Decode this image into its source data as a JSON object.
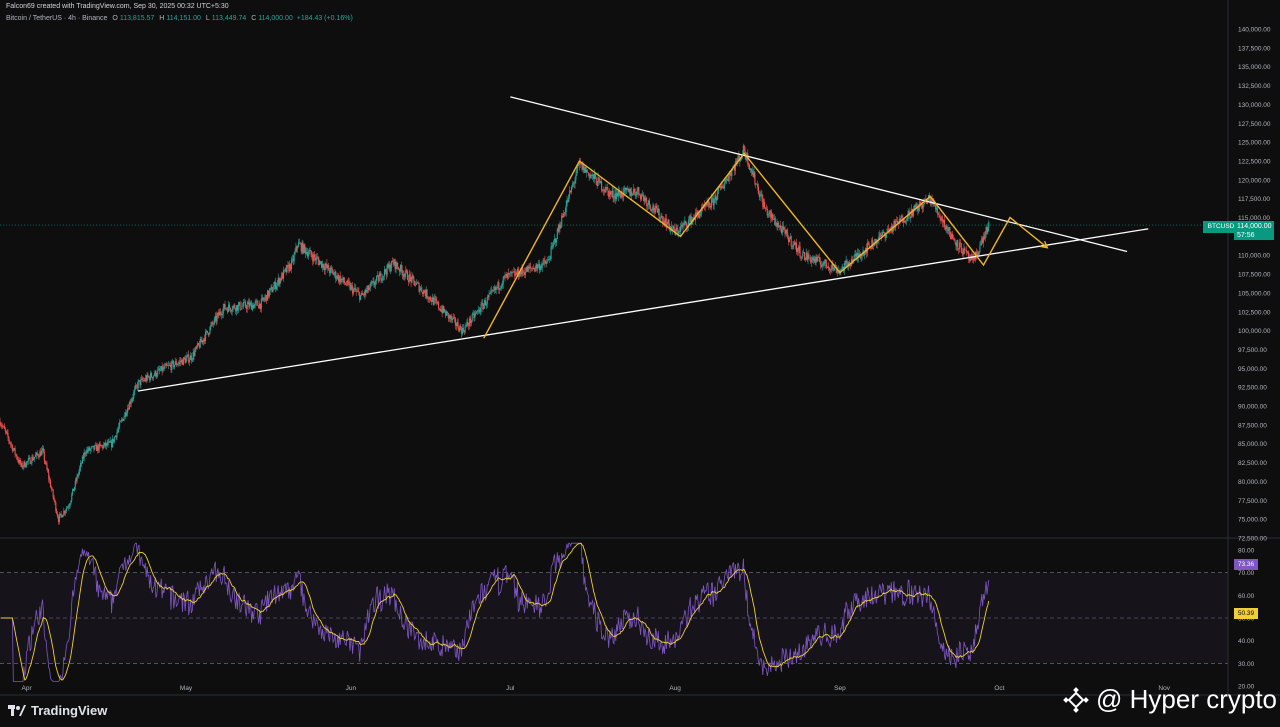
{
  "header": {
    "author_line": "Falcon69 created with TradingView.com, Sep 30, 2025 00:32 UTC+5:30",
    "symbol": "Bitcoin / TetherUS · 4h · Binance",
    "ohlc": {
      "o_label": "O",
      "o": "113,815.57",
      "h_label": "H",
      "h": "114,151.00",
      "l_label": "L",
      "l": "113,449.74",
      "c_label": "C",
      "c": "114,000.00",
      "change": "+184.43 (+0.16%)"
    }
  },
  "tags": {
    "symbol_tag": "BTCUSDT",
    "price": "114,000.00",
    "countdown": "57:56",
    "rsi_value": "73.36",
    "rsi_ma_value": "50.39"
  },
  "footer": {
    "brand": "TradingView"
  },
  "watermark": {
    "text": "@ Hyper  crypto"
  },
  "colors": {
    "background": "#0e0e0e",
    "up": "#26a69a",
    "down": "#ef5350",
    "rsi_line": "#7e57c2",
    "rsi_ma": "#f0d034",
    "pattern": "#f0b429",
    "trendline": "#ffffff"
  },
  "chart_data": [
    {
      "type": "candlestick",
      "title": "Bitcoin / TetherUS · 4h · Binance",
      "y_axis_labels": [
        "140,000.00",
        "137,500.00",
        "135,000.00",
        "132,500.00",
        "130,000.00",
        "127,500.00",
        "125,000.00",
        "122,500.00",
        "120,000.00",
        "117,500.00",
        "115,000.00",
        "112,500.00",
        "110,000.00",
        "107,500.00",
        "105,000.00",
        "102,500.00",
        "100,000.00",
        "97,500.00",
        "95,000.00",
        "92,500.00",
        "90,000.00",
        "87,500.00",
        "85,000.00",
        "82,500.00",
        "80,000.00",
        "77,500.00",
        "75,000.00",
        "72,500.00"
      ],
      "ylim": [
        72500,
        140000
      ],
      "x_axis_labels": [
        "Apr",
        "May",
        "Jun",
        "Jul",
        "Aug",
        "Sep",
        "Oct",
        "Nov"
      ],
      "price_path": [
        {
          "date": "2025-03-27",
          "price": 88000
        },
        {
          "date": "2025-03-31",
          "price": 82000
        },
        {
          "date": "2025-04-04",
          "price": 84000
        },
        {
          "date": "2025-04-07",
          "price": 75000
        },
        {
          "date": "2025-04-09",
          "price": 77000
        },
        {
          "date": "2025-04-12",
          "price": 84000
        },
        {
          "date": "2025-04-17",
          "price": 85000
        },
        {
          "date": "2025-04-22",
          "price": 93000
        },
        {
          "date": "2025-04-27",
          "price": 95000
        },
        {
          "date": "2025-05-02",
          "price": 96500
        },
        {
          "date": "2025-05-08",
          "price": 103000
        },
        {
          "date": "2025-05-15",
          "price": 103500
        },
        {
          "date": "2025-05-21",
          "price": 109000
        },
        {
          "date": "2025-05-22",
          "price": 111500
        },
        {
          "date": "2025-05-28",
          "price": 108000
        },
        {
          "date": "2025-06-03",
          "price": 104500
        },
        {
          "date": "2025-06-09",
          "price": 109000
        },
        {
          "date": "2025-06-15",
          "price": 105000
        },
        {
          "date": "2025-06-22",
          "price": 100000
        },
        {
          "date": "2025-06-30",
          "price": 107000
        },
        {
          "date": "2025-07-08",
          "price": 109000
        },
        {
          "date": "2025-07-14",
          "price": 122000
        },
        {
          "date": "2025-07-20",
          "price": 118000
        },
        {
          "date": "2025-07-25",
          "price": 118500
        },
        {
          "date": "2025-08-01",
          "price": 113000
        },
        {
          "date": "2025-08-08",
          "price": 117000
        },
        {
          "date": "2025-08-14",
          "price": 124000
        },
        {
          "date": "2025-08-18",
          "price": 116000
        },
        {
          "date": "2025-08-25",
          "price": 110000
        },
        {
          "date": "2025-09-01",
          "price": 108000
        },
        {
          "date": "2025-09-07",
          "price": 111500
        },
        {
          "date": "2025-09-14",
          "price": 115500
        },
        {
          "date": "2025-09-18",
          "price": 117500
        },
        {
          "date": "2025-09-22",
          "price": 112500
        },
        {
          "date": "2025-09-26",
          "price": 109000
        },
        {
          "date": "2025-09-29",
          "price": 114000
        }
      ],
      "trendlines": [
        {
          "name": "resistance",
          "from": {
            "date": "2025-07-01",
            "price": 131000
          },
          "to": {
            "date": "2025-10-25",
            "price": 110500
          }
        },
        {
          "name": "support",
          "from": {
            "date": "2025-04-22",
            "price": 92000
          },
          "to": {
            "date": "2025-10-29",
            "price": 113500
          }
        }
      ],
      "pattern_path": [
        {
          "date": "2025-06-26",
          "price": 99000
        },
        {
          "date": "2025-07-14",
          "price": 122500
        },
        {
          "date": "2025-08-02",
          "price": 112500
        },
        {
          "date": "2025-08-14",
          "price": 123500
        },
        {
          "date": "2025-09-01",
          "price": 107700
        },
        {
          "date": "2025-09-18",
          "price": 117800
        },
        {
          "date": "2025-09-28",
          "price": 108700
        },
        {
          "date": "2025-10-03",
          "price": 115000
        },
        {
          "date": "2025-10-10",
          "price": 111000
        }
      ]
    },
    {
      "type": "line",
      "title": "",
      "y_axis_labels": [
        "80.00",
        "70.00",
        "60.00",
        "50.00",
        "40.00",
        "30.00",
        "20.00"
      ],
      "ylim": [
        20,
        82
      ],
      "bands": [
        30,
        50,
        70
      ],
      "series": [
        {
          "values_hint": "RSI oscillating between ~25 and ~83, latest 73.36"
        },
        {
          "values_hint": "RSI moving average, latest 50.39"
        }
      ]
    }
  ]
}
